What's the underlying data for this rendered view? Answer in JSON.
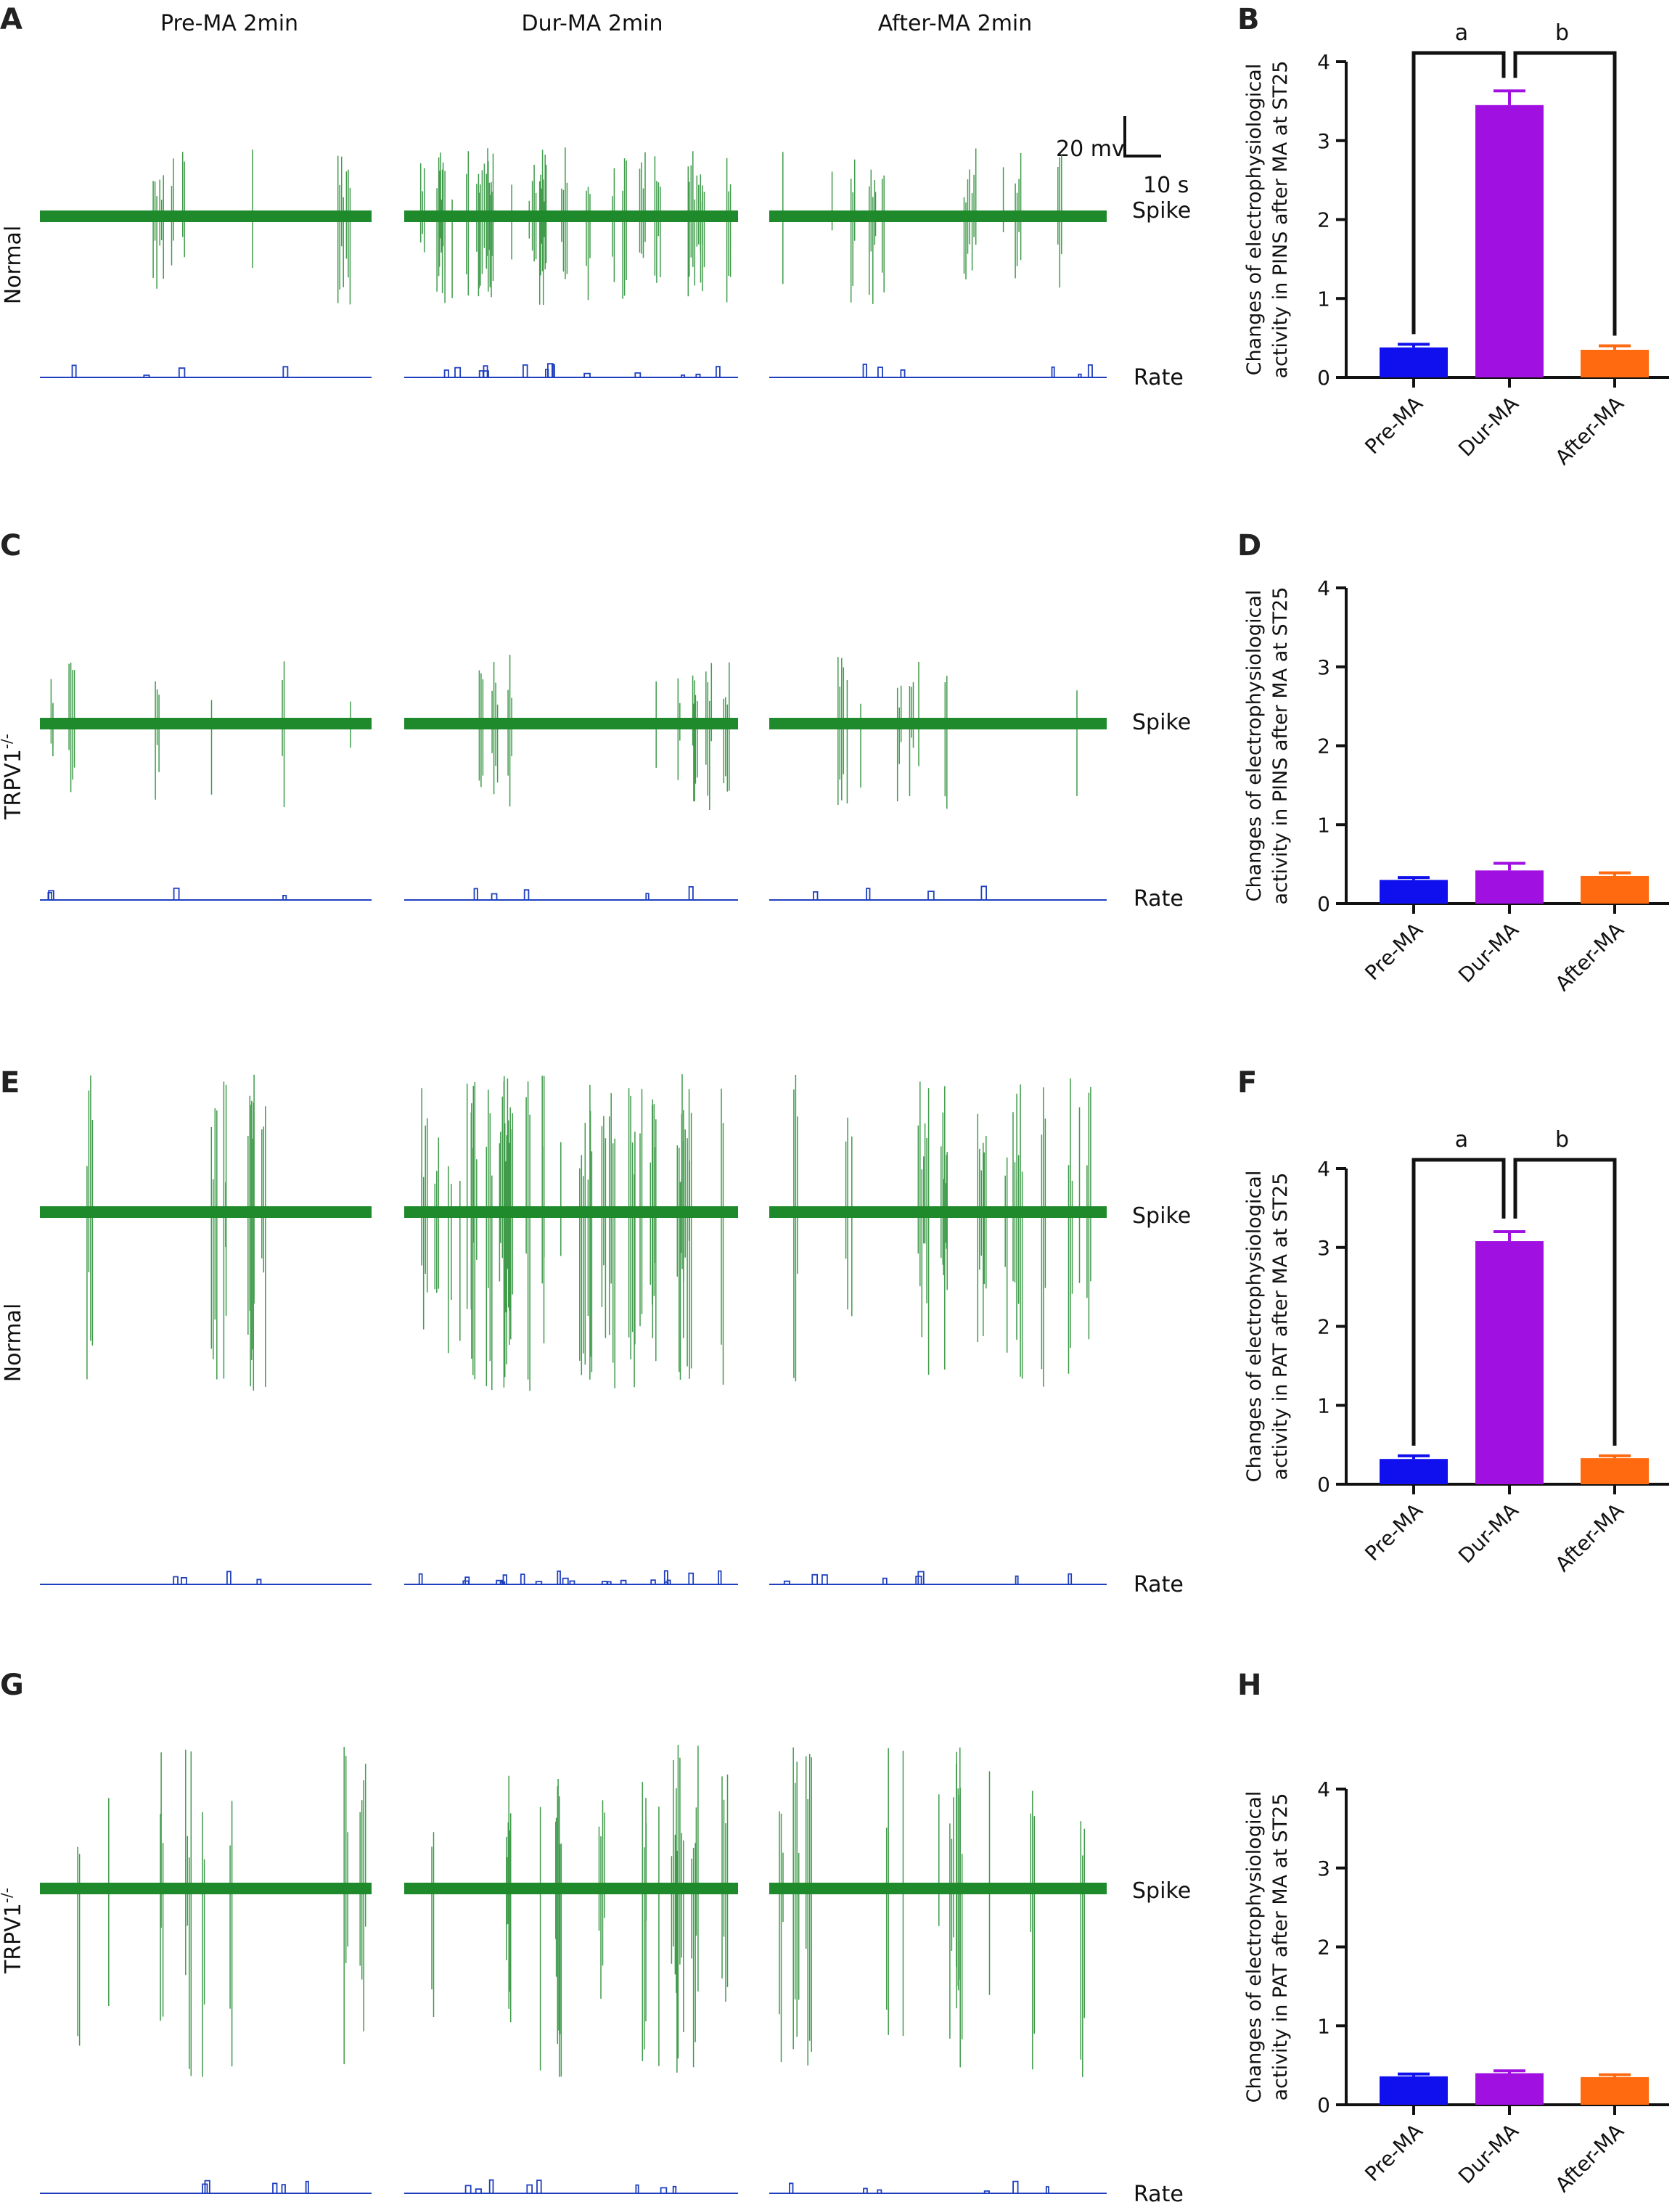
{
  "colors": {
    "spike": "#1f8a2b",
    "rate": "#1f3fbf",
    "pre": "#1010ee",
    "dur": "#a010e0",
    "after": "#ff6a10",
    "axis": "#111111"
  },
  "traces": {
    "column_titles": [
      "Pre-MA  2min",
      "Dur-MA  2min",
      "After-MA  2min"
    ],
    "scale_bar": {
      "voltage": "20 mv",
      "time": "10 s"
    },
    "spike_label": "Spike",
    "rate_label": "Rate",
    "rows": [
      {
        "letter": "A",
        "group": "Normal"
      },
      {
        "letter": "C",
        "group": "TRPV1",
        "group_sup": "-/-"
      },
      {
        "letter": "E",
        "group": "Normal"
      },
      {
        "letter": "G",
        "group": "TRPV1",
        "group_sup": "-/-"
      }
    ]
  },
  "chart_data": [
    {
      "letter": "B",
      "type": "bar",
      "categories": [
        "Pre-MA",
        "Dur-MA",
        "After-MA"
      ],
      "values": [
        0.38,
        3.45,
        0.35
      ],
      "errors": [
        0.04,
        0.18,
        0.05
      ],
      "ylabel": [
        "Changes of electrophysiological",
        "activity in PINS after MA at ST25"
      ],
      "ylim": [
        0,
        4
      ],
      "yticks": [
        "0",
        "1",
        "2",
        "3",
        "4"
      ],
      "significance": [
        "a",
        "b"
      ]
    },
    {
      "letter": "D",
      "type": "bar",
      "categories": [
        "Pre-MA",
        "Dur-MA",
        "After-MA"
      ],
      "values": [
        0.3,
        0.42,
        0.35
      ],
      "errors": [
        0.03,
        0.09,
        0.04
      ],
      "ylabel": [
        "Changes of electrophysiological",
        "activity in PINS after MA at ST25"
      ],
      "ylim": [
        0,
        4
      ],
      "yticks": [
        "0",
        "1",
        "2",
        "3",
        "4"
      ],
      "significance": []
    },
    {
      "letter": "F",
      "type": "bar",
      "categories": [
        "Pre-MA",
        "Dur-MA",
        "After-MA"
      ],
      "values": [
        0.32,
        3.08,
        0.33
      ],
      "errors": [
        0.04,
        0.12,
        0.03
      ],
      "ylabel": [
        "Changes of electrophysiological",
        "activity in PAT after MA at ST25"
      ],
      "ylim": [
        0,
        4
      ],
      "yticks": [
        "0",
        "1",
        "2",
        "3",
        "4"
      ],
      "significance": [
        "a",
        "b"
      ]
    },
    {
      "letter": "H",
      "type": "bar",
      "categories": [
        "Pre-MA",
        "Dur-MA",
        "After-MA"
      ],
      "values": [
        0.36,
        0.4,
        0.35
      ],
      "errors": [
        0.03,
        0.03,
        0.03
      ],
      "ylabel": [
        "Changes of electrophysiological",
        "activity in PAT after MA at ST25"
      ],
      "ylim": [
        0,
        4
      ],
      "yticks": [
        "0",
        "1",
        "2",
        "3",
        "4"
      ],
      "significance": []
    }
  ]
}
